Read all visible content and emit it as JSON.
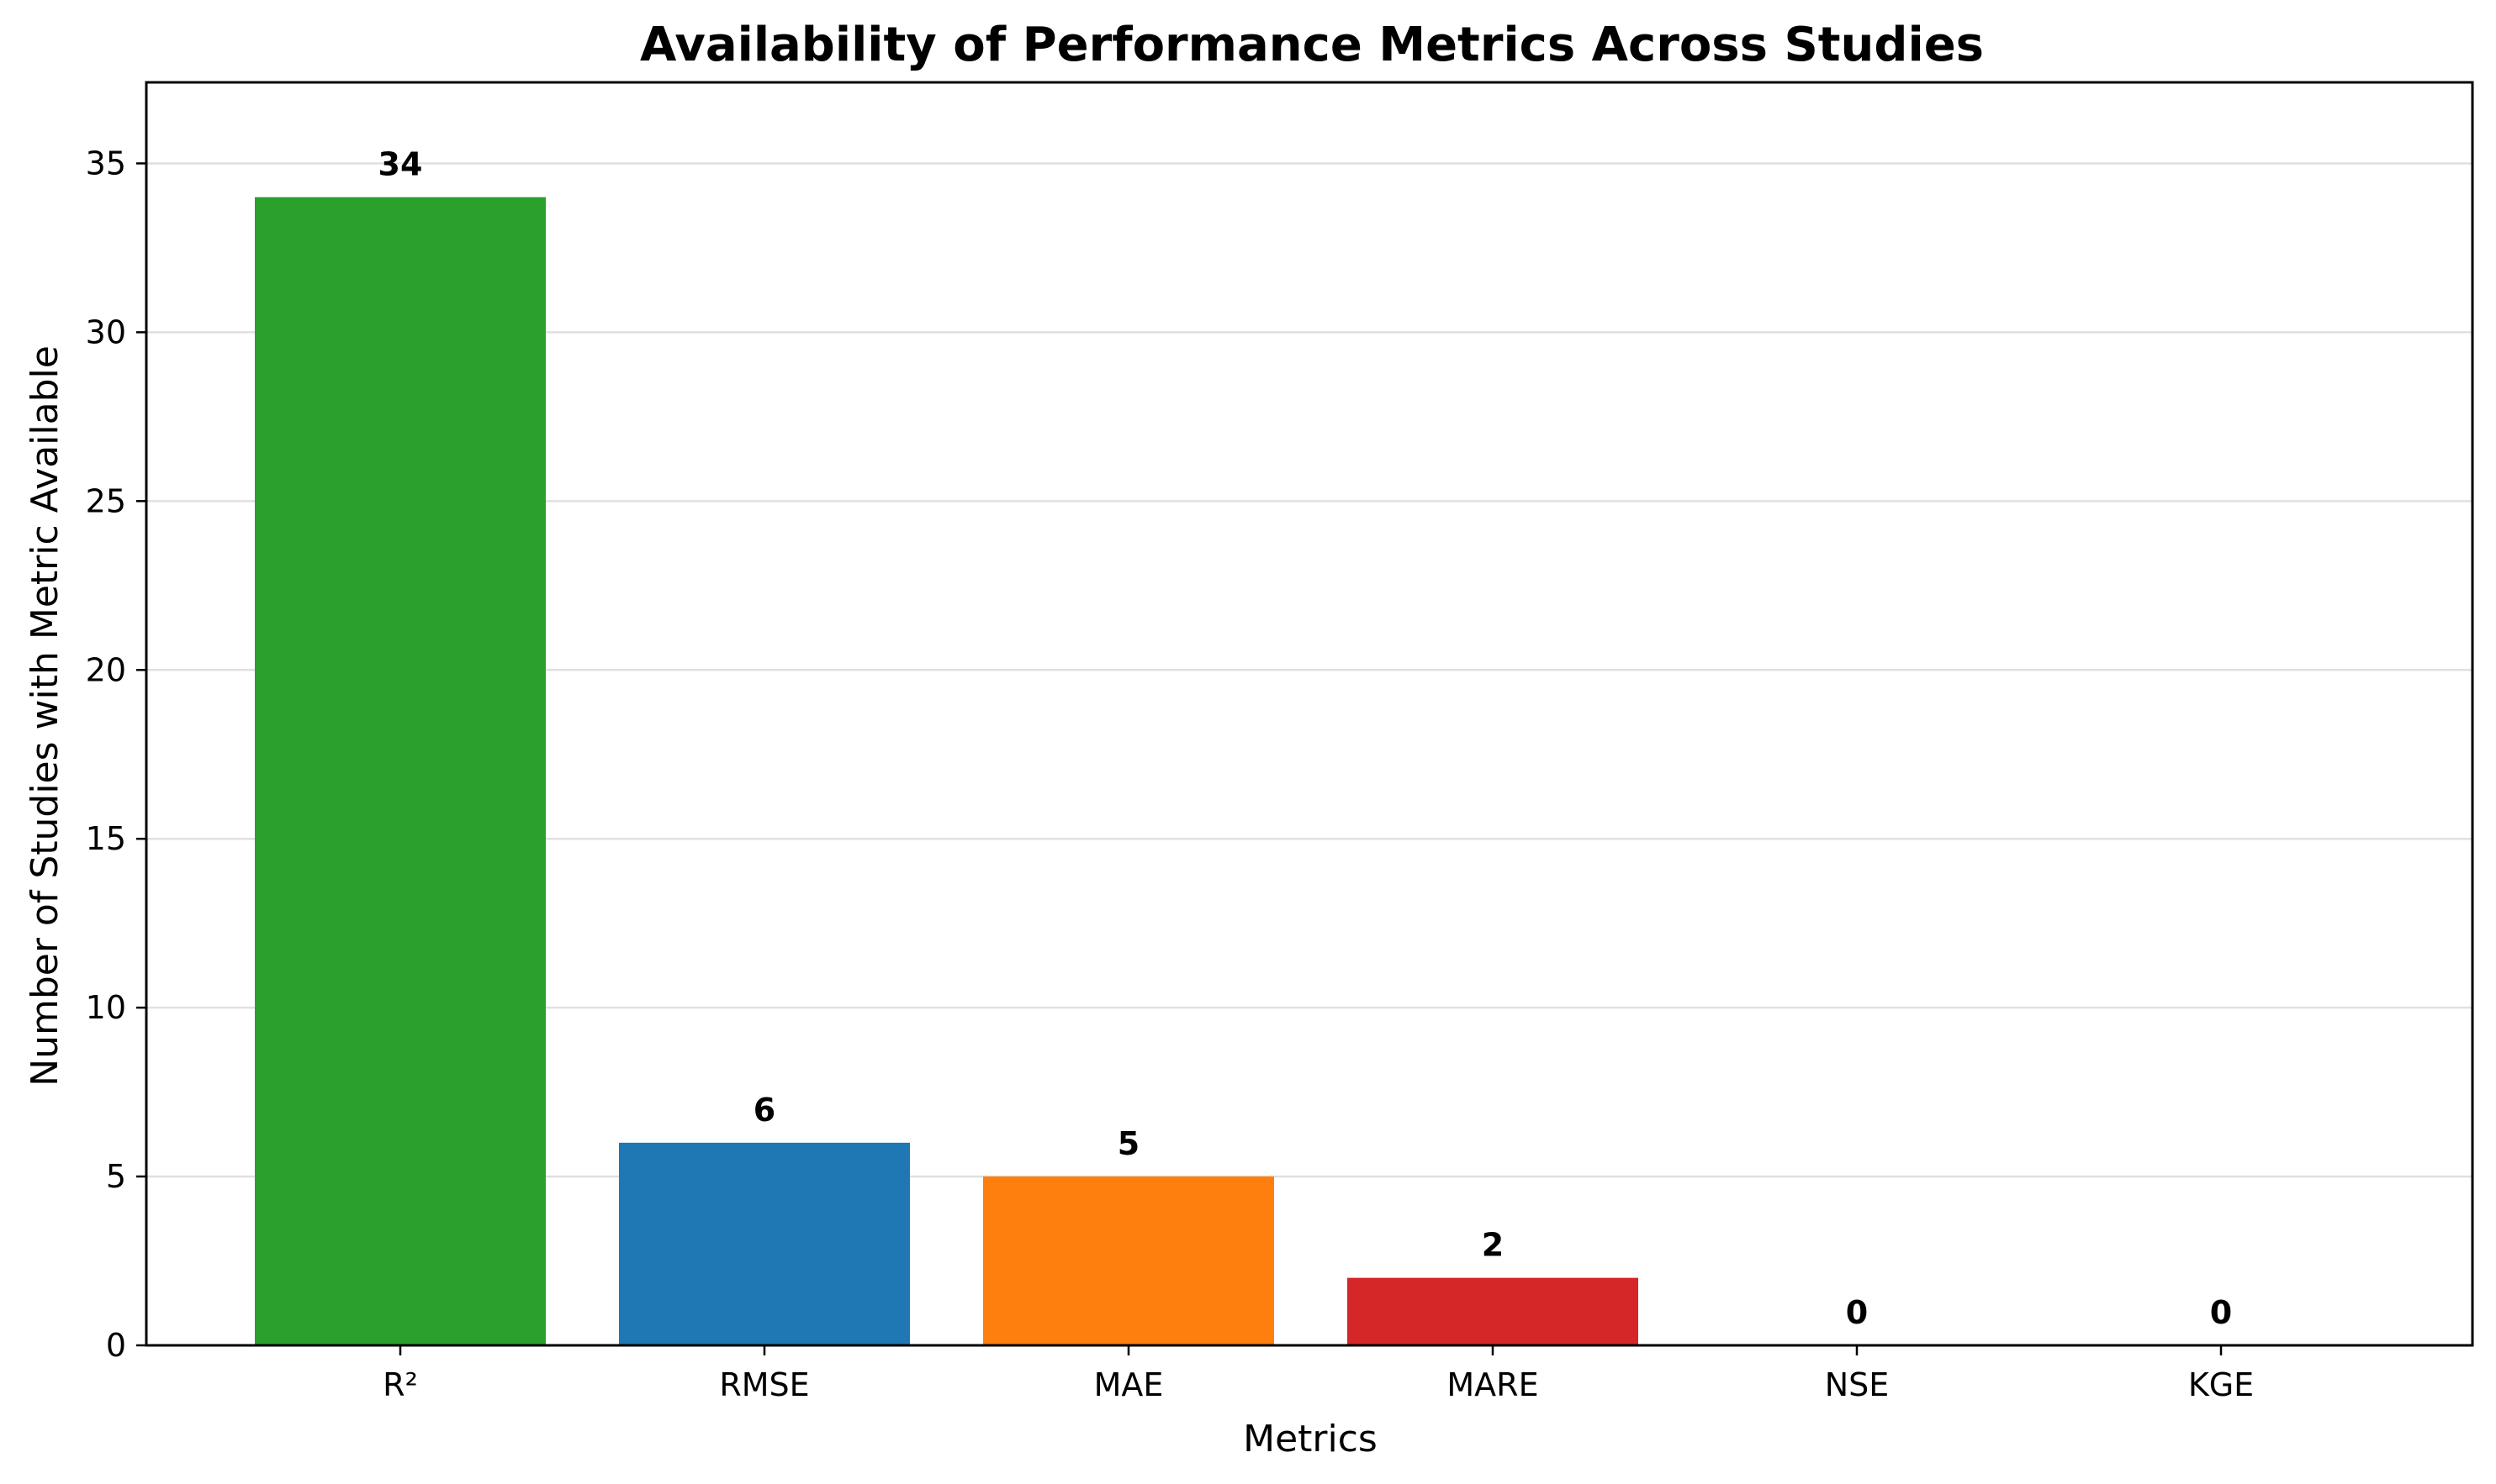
{
  "chart_data": {
    "type": "bar",
    "title": "Availability of Performance Metrics Across Studies",
    "xlabel": "Metrics",
    "ylabel": "Number of Studies with Metric Available",
    "categories": [
      "R²",
      "RMSE",
      "MAE",
      "MARE",
      "NSE",
      "KGE"
    ],
    "values": [
      34,
      6,
      5,
      2,
      0,
      0
    ],
    "data_labels": [
      "34",
      "6",
      "5",
      "2",
      "0",
      "0"
    ],
    "colors": [
      "#2ca02c",
      "#1f77b4",
      "#ff7f0e",
      "#d62728",
      "#9467bd",
      "#8c564b"
    ],
    "ylim": [
      0,
      37.4
    ],
    "yticks": [
      0,
      5,
      10,
      15,
      20,
      25,
      30,
      35
    ],
    "grid": "y-axis, light gray",
    "legend": "none"
  }
}
